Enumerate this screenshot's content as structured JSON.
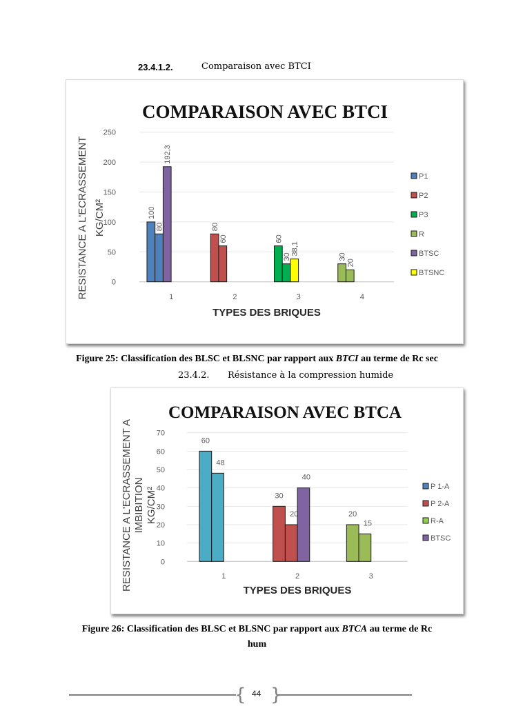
{
  "section1": {
    "number": "23.4.1.2.",
    "title": "Comparaison avec BTCI"
  },
  "figure1_caption": {
    "prefix": "Figure 25: Classification des BLSC et BLSNC par rapport aux ",
    "italic": "BTCI",
    "suffix": " au terme de Rc sec"
  },
  "section2": {
    "number": "23.4.2.",
    "title": "Résistance à la compression humide"
  },
  "figure2_caption": {
    "prefix": "Figure 26: Classification des BLSC et BLSNC par rapport aux ",
    "italic": "BTCA",
    "suffix": " au terme de Rc",
    "line2": "hum"
  },
  "page_number": "44",
  "chart_data": [
    {
      "type": "bar",
      "title": "COMPARAISON AVEC BTCI",
      "xlabel": "TYPES DES BRIQUES",
      "ylabel": [
        "RESISTANCE A L'ECRASSEMENT",
        "KG/CM²"
      ],
      "ylim": [
        0,
        250
      ],
      "yticks": [
        "0",
        "50",
        "100",
        "150",
        "200",
        "250"
      ],
      "grid": true,
      "legend_position": "right",
      "legend": [
        {
          "name": "P1",
          "color": "#4F81BD"
        },
        {
          "name": "P2",
          "color": "#C0504D"
        },
        {
          "name": "P3",
          "color": "#00B050"
        },
        {
          "name": "R",
          "color": "#9BBB59"
        },
        {
          "name": "BTSC",
          "color": "#8064A2"
        },
        {
          "name": "BTSNC",
          "color": "#FFFF00"
        }
      ],
      "categories": [
        "1",
        "2",
        "3",
        "4"
      ],
      "groups": [
        [
          {
            "series": "P1",
            "value": 100,
            "label": "100",
            "color": "#4F81BD"
          },
          {
            "series": "P1",
            "value": 80,
            "label": "80",
            "color": "#4F81BD"
          },
          {
            "series": "BTSC",
            "value": 192.3,
            "label": "192,3",
            "color": "#8064A2"
          }
        ],
        [
          {
            "series": "P2",
            "value": 80,
            "label": "80",
            "color": "#C0504D"
          },
          {
            "series": "P2",
            "value": 60,
            "label": "60",
            "color": "#C0504D"
          }
        ],
        [
          {
            "series": "P3",
            "value": 60,
            "label": "60",
            "color": "#00B050"
          },
          {
            "series": "P3",
            "value": 30,
            "label": "30",
            "color": "#00B050"
          },
          {
            "series": "BTSNC",
            "value": 38.1,
            "label": "38,1",
            "color": "#FFFF00"
          }
        ],
        [
          {
            "series": "R",
            "value": 30,
            "label": "30",
            "color": "#9BBB59"
          },
          {
            "series": "R",
            "value": 20,
            "label": "20",
            "color": "#9BBB59"
          }
        ]
      ],
      "data_label_orientation": "vertical"
    },
    {
      "type": "bar",
      "title": "COMPARAISON AVEC BTCA",
      "xlabel": "TYPES DES BRIQUES",
      "ylabel": [
        "RESISTANCE A L'ECRASSEMENT A",
        "IMBIBITION",
        "KG/CM²"
      ],
      "ylim": [
        0,
        70
      ],
      "yticks": [
        "0",
        "10",
        "20",
        "30",
        "40",
        "50",
        "60",
        "70"
      ],
      "grid": true,
      "legend_position": "right",
      "legend": [
        {
          "name": "P 1-A",
          "color": "#4F81BD"
        },
        {
          "name": "P 2-A",
          "color": "#C0504D"
        },
        {
          "name": "R-A",
          "color": "#92D050"
        },
        {
          "name": "BTSC",
          "color": "#8064A2"
        }
      ],
      "categories": [
        "1",
        "2",
        "3"
      ],
      "groups": [
        [
          {
            "series": "P 1-A",
            "value": 60,
            "label": "60",
            "color": "#4BACC6"
          },
          {
            "series": "P 1-A",
            "value": 48,
            "label": "48",
            "color": "#4BACC6"
          }
        ],
        [
          {
            "series": "P 2-A",
            "value": 30,
            "label": "30",
            "color": "#C0504D"
          },
          {
            "series": "P 2-A",
            "value": 20,
            "label": "20",
            "color": "#C0504D"
          },
          {
            "series": "BTSC",
            "value": 40,
            "label": "40",
            "color": "#8064A2"
          }
        ],
        [
          {
            "series": "R-A",
            "value": 20,
            "label": "20",
            "color": "#9BBB59"
          },
          {
            "series": "R-A",
            "value": 15,
            "label": "15",
            "color": "#9BBB59"
          }
        ]
      ],
      "data_label_orientation": "horizontal"
    }
  ]
}
